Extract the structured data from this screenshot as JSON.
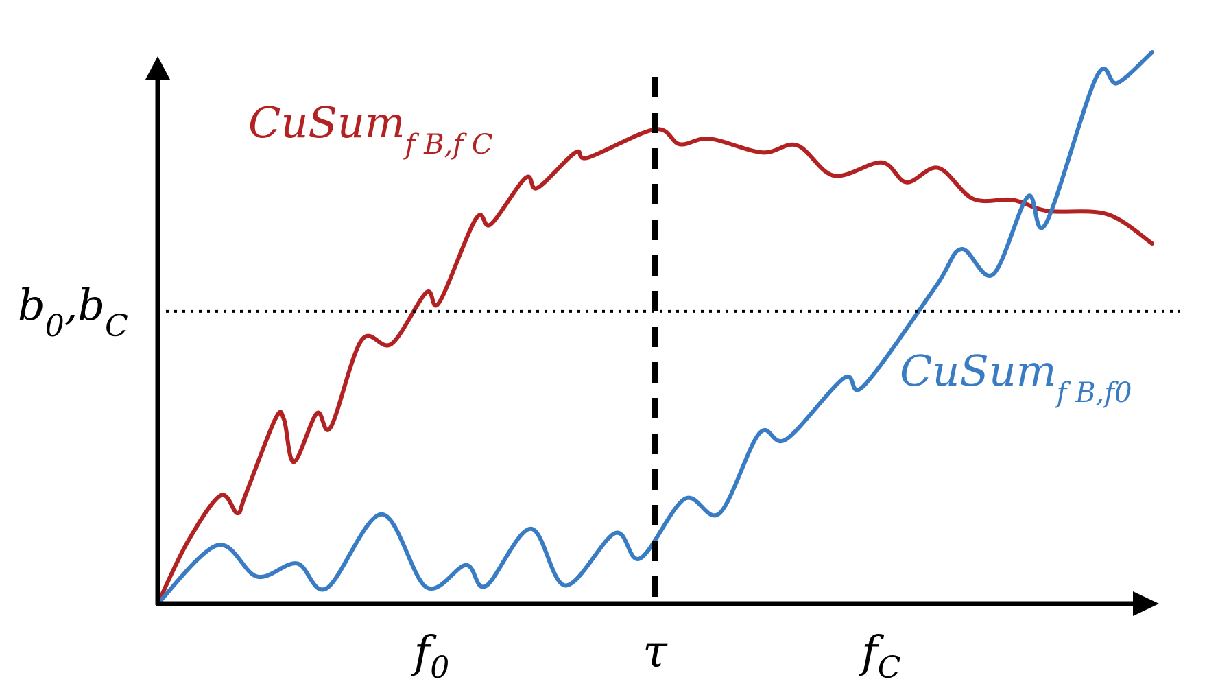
{
  "chart_data": {
    "type": "line",
    "title": "",
    "xlabel": "",
    "ylabel": "",
    "grid": false,
    "x_ticks": [
      {
        "label": "f",
        "sub": "0",
        "x": 0.27
      },
      {
        "label": "τ",
        "sub": "",
        "x": 0.5
      },
      {
        "label": "f",
        "sub": "C",
        "x": 0.72
      }
    ],
    "changepoint": {
      "label": "τ",
      "x": 0.5,
      "style": "dashed"
    },
    "threshold": {
      "label": "b",
      "label_sub": "0",
      "label_sep": ",b",
      "label_sub2": "C",
      "y": 0.53,
      "style": "dotted"
    },
    "xlim": [
      0,
      1
    ],
    "ylim": [
      0,
      1
    ],
    "colors": {
      "red_series": "#b22222",
      "blue_series": "#3a7cc3",
      "axis": "#000000"
    },
    "series": [
      {
        "name": "CuSum",
        "name_sub": "f B,f C",
        "color": "#b22222",
        "points": [
          [
            0.0,
            0.0
          ],
          [
            0.03,
            0.112
          ],
          [
            0.063,
            0.196
          ],
          [
            0.08,
            0.164
          ],
          [
            0.088,
            0.196
          ],
          [
            0.118,
            0.334
          ],
          [
            0.127,
            0.334
          ],
          [
            0.137,
            0.257
          ],
          [
            0.16,
            0.345
          ],
          [
            0.174,
            0.32
          ],
          [
            0.205,
            0.478
          ],
          [
            0.235,
            0.471
          ],
          [
            0.27,
            0.564
          ],
          [
            0.283,
            0.546
          ],
          [
            0.32,
            0.698
          ],
          [
            0.335,
            0.688
          ],
          [
            0.37,
            0.772
          ],
          [
            0.382,
            0.754
          ],
          [
            0.42,
            0.818
          ],
          [
            0.433,
            0.809
          ],
          [
            0.5,
            0.86
          ],
          [
            0.525,
            0.833
          ],
          [
            0.555,
            0.843
          ],
          [
            0.608,
            0.818
          ],
          [
            0.643,
            0.831
          ],
          [
            0.68,
            0.776
          ],
          [
            0.728,
            0.8
          ],
          [
            0.753,
            0.764
          ],
          [
            0.785,
            0.79
          ],
          [
            0.82,
            0.734
          ],
          [
            0.86,
            0.732
          ],
          [
            0.895,
            0.712
          ],
          [
            0.955,
            0.706
          ],
          [
            1.0,
            0.653
          ]
        ]
      },
      {
        "name": "CuSum",
        "name_sub": "f B,f0",
        "color": "#3a7cc3",
        "points": [
          [
            0.0,
            0.0
          ],
          [
            0.06,
            0.106
          ],
          [
            0.1,
            0.049
          ],
          [
            0.14,
            0.073
          ],
          [
            0.17,
            0.028
          ],
          [
            0.225,
            0.162
          ],
          [
            0.27,
            0.03
          ],
          [
            0.31,
            0.07
          ],
          [
            0.33,
            0.032
          ],
          [
            0.375,
            0.136
          ],
          [
            0.41,
            0.033
          ],
          [
            0.46,
            0.128
          ],
          [
            0.485,
            0.082
          ],
          [
            0.53,
            0.19
          ],
          [
            0.565,
            0.164
          ],
          [
            0.605,
            0.309
          ],
          [
            0.632,
            0.298
          ],
          [
            0.69,
            0.409
          ],
          [
            0.71,
            0.395
          ],
          [
            0.782,
            0.574
          ],
          [
            0.808,
            0.643
          ],
          [
            0.84,
            0.597
          ],
          [
            0.875,
            0.738
          ],
          [
            0.893,
            0.689
          ],
          [
            0.944,
            0.955
          ],
          [
            0.965,
            0.944
          ],
          [
            1.0,
            1.0
          ]
        ]
      }
    ]
  }
}
